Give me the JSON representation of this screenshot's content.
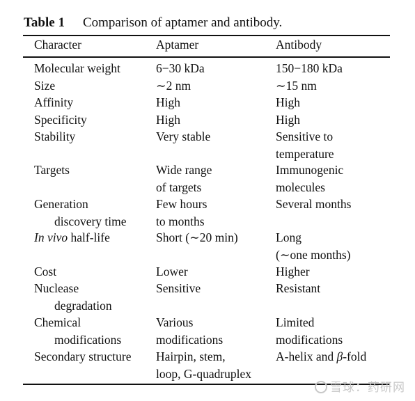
{
  "caption": {
    "label": "Table 1",
    "text": "Comparison of aptamer and antibody."
  },
  "headers": [
    "Character",
    "Aptamer",
    "Antibody"
  ],
  "rows": [
    {
      "character": [
        "Molecular weight"
      ],
      "aptamer": [
        "6−30 kDa"
      ],
      "antibody": [
        "150−180 kDa"
      ]
    },
    {
      "character": [
        "Size"
      ],
      "aptamer": [
        "∼2 nm"
      ],
      "antibody": [
        "∼15 nm"
      ]
    },
    {
      "character": [
        "Affinity"
      ],
      "aptamer": [
        "High"
      ],
      "antibody": [
        "High"
      ]
    },
    {
      "character": [
        "Specificity"
      ],
      "aptamer": [
        "High"
      ],
      "antibody": [
        "High"
      ]
    },
    {
      "character": [
        "Stability"
      ],
      "aptamer": [
        "Very stable"
      ],
      "antibody": [
        "Sensitive to",
        "temperature"
      ]
    },
    {
      "character": [
        "Targets"
      ],
      "aptamer": [
        "Wide range",
        "of targets"
      ],
      "antibody": [
        "Immunogenic",
        "molecules"
      ]
    },
    {
      "character": [
        "Generation",
        "discovery time"
      ],
      "aptamer": [
        "Few hours",
        "to months"
      ],
      "antibody": [
        "Several months"
      ]
    },
    {
      "character_italic": "In vivo",
      "character": [
        " half-life"
      ],
      "aptamer": [
        "Short (∼20 min)"
      ],
      "antibody": [
        "Long",
        "(∼one months)"
      ]
    },
    {
      "character": [
        "Cost"
      ],
      "aptamer": [
        "Lower"
      ],
      "antibody": [
        "Higher"
      ]
    },
    {
      "character": [
        "Nuclease",
        "degradation"
      ],
      "aptamer": [
        "Sensitive"
      ],
      "antibody": [
        "Resistant"
      ]
    },
    {
      "character": [
        "Chemical",
        "modifications"
      ],
      "aptamer": [
        "Various",
        "modifications"
      ],
      "antibody": [
        "Limited",
        "modifications"
      ]
    },
    {
      "character": [
        "Secondary structure"
      ],
      "aptamer": [
        "Hairpin, stem,",
        "loop, G-quadruplex"
      ],
      "antibody_prefix": "A-helix and ",
      "antibody_greek": "β",
      "antibody_suffix": "-fold"
    }
  ],
  "watermark": "雪球：药研网"
}
